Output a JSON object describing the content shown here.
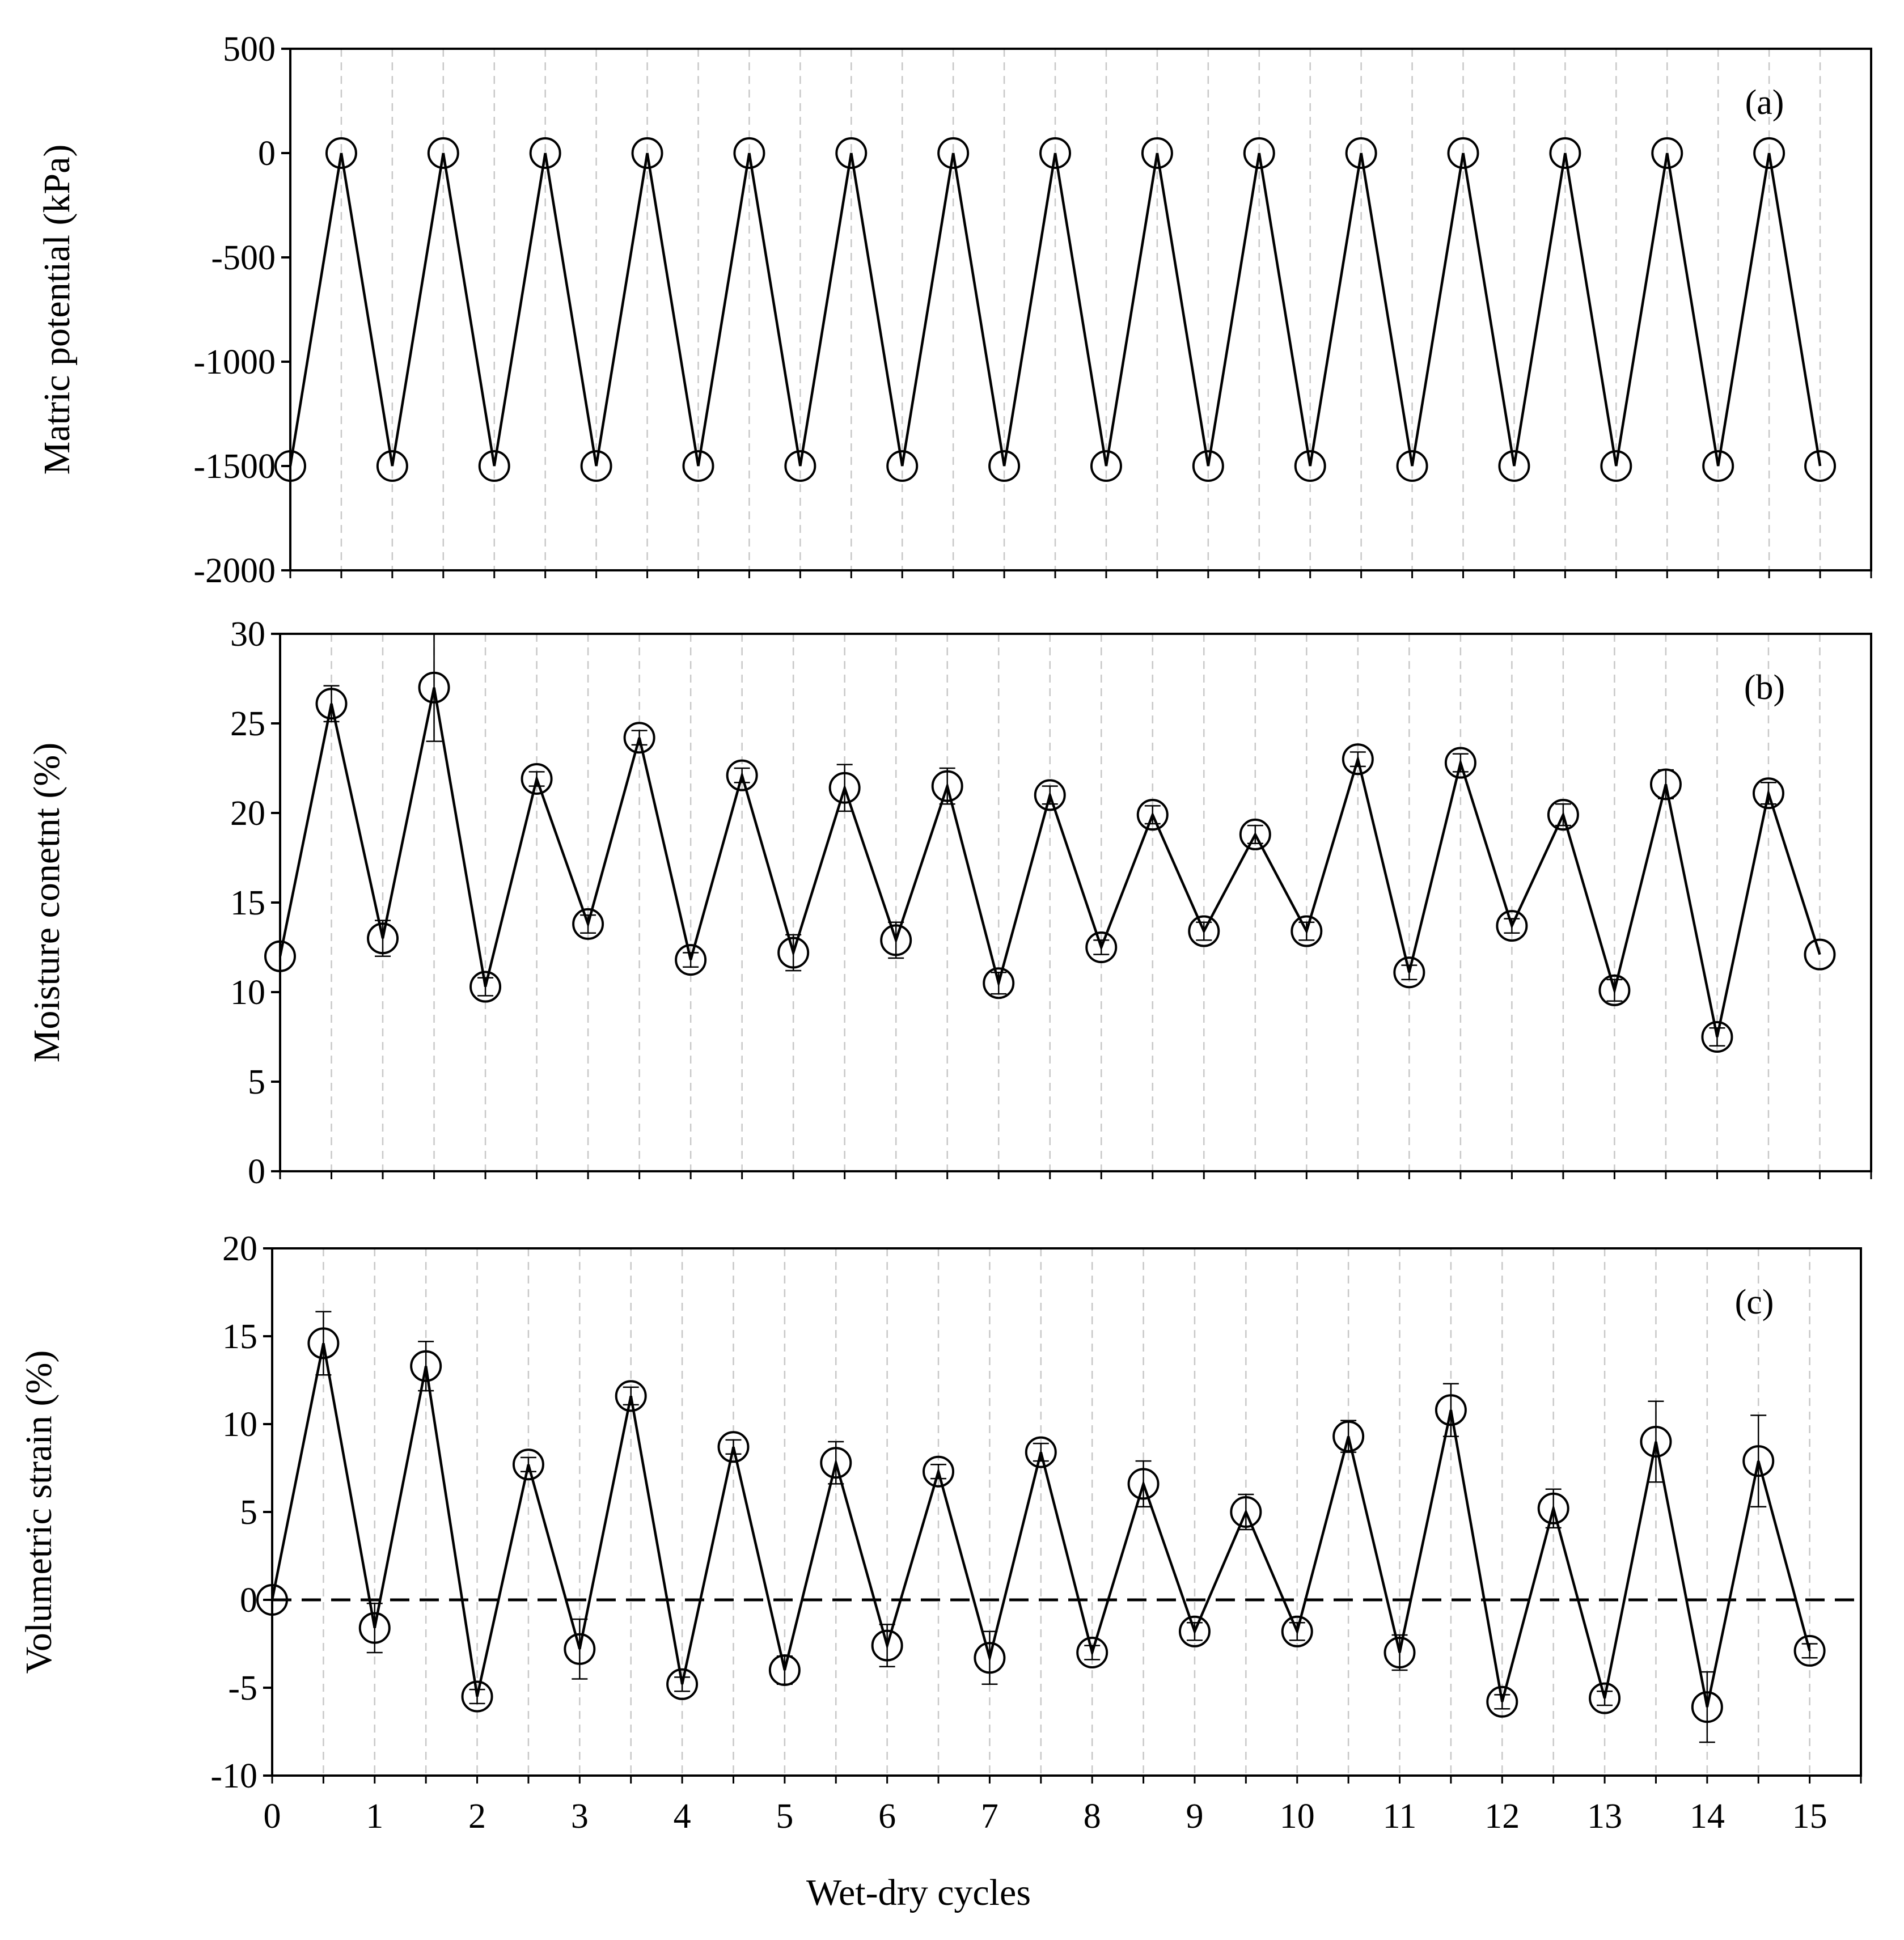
{
  "chart_data": [
    {
      "type": "line",
      "panel_label": "(a)",
      "ylabel": "Matric potential (kPa)",
      "ylim": [
        -2000,
        500
      ],
      "yticks": [
        500,
        0,
        -500,
        -1000,
        -1500,
        -2000
      ],
      "x": [
        0,
        0.5,
        1,
        1.5,
        2,
        2.5,
        3,
        3.5,
        4,
        4.5,
        5,
        5.5,
        6,
        6.5,
        7,
        7.5,
        8,
        8.5,
        9,
        9.5,
        10,
        10.5,
        11,
        11.5,
        12,
        12.5,
        13,
        13.5,
        14,
        14.5,
        15
      ],
      "series": [
        {
          "values": [
            -1500,
            0,
            -1500,
            0,
            -1500,
            0,
            -1500,
            0,
            -1500,
            0,
            -1500,
            0,
            -1500,
            0,
            -1500,
            0,
            -1500,
            0,
            -1500,
            0,
            -1500,
            0,
            -1500,
            0,
            -1500,
            0,
            -1500,
            0,
            -1500,
            0,
            -1500
          ],
          "errors": []
        }
      ]
    },
    {
      "type": "line",
      "panel_label": "(b)",
      "ylabel": "Moisture conetnt (%)",
      "ylim": [
        0,
        30
      ],
      "yticks": [
        0,
        5,
        10,
        15,
        20,
        25,
        30
      ],
      "x": [
        0,
        0.5,
        1,
        1.5,
        2,
        2.5,
        3,
        3.5,
        4,
        4.5,
        5,
        5.5,
        6,
        6.5,
        7,
        7.5,
        8,
        8.5,
        9,
        9.5,
        10,
        10.5,
        11,
        11.5,
        12,
        12.5,
        13,
        13.5,
        14,
        14.5,
        15
      ],
      "series": [
        {
          "values": [
            12.0,
            26.1,
            13.0,
            27.0,
            10.3,
            21.9,
            13.8,
            24.2,
            11.8,
            22.1,
            12.2,
            21.4,
            12.9,
            21.5,
            10.5,
            21.0,
            12.5,
            19.9,
            13.4,
            18.8,
            13.4,
            23.0,
            11.1,
            22.8,
            13.7,
            19.9,
            10.1,
            21.6,
            7.5,
            21.1,
            12.1
          ],
          "errors": [
            0,
            1.0,
            1.0,
            3.0,
            0.5,
            0.4,
            0.5,
            0.4,
            0.4,
            0.4,
            1.0,
            1.3,
            1.0,
            1.0,
            0.6,
            0.5,
            0.4,
            0.5,
            0.5,
            0.5,
            0.5,
            0.4,
            0.4,
            0.5,
            0.4,
            0.6,
            0.6,
            0.8,
            0.5,
            0.6,
            0
          ]
        }
      ]
    },
    {
      "type": "line",
      "panel_label": "(c)",
      "ylabel": "Volumetric strain (%)",
      "xlabel": "Wet-dry cycles",
      "ylim": [
        -10,
        20
      ],
      "yticks": [
        -10,
        -5,
        0,
        5,
        10,
        15,
        20
      ],
      "reference_line": 0,
      "x": [
        0,
        0.5,
        1,
        1.5,
        2,
        2.5,
        3,
        3.5,
        4,
        4.5,
        5,
        5.5,
        6,
        6.5,
        7,
        7.5,
        8,
        8.5,
        9,
        9.5,
        10,
        10.5,
        11,
        11.5,
        12,
        12.5,
        13,
        13.5,
        14,
        14.5,
        15
      ],
      "xticks": [
        0,
        1,
        2,
        3,
        4,
        5,
        6,
        7,
        8,
        9,
        10,
        11,
        12,
        13,
        14,
        15
      ],
      "series": [
        {
          "values": [
            0,
            14.6,
            -1.6,
            13.3,
            -5.5,
            7.7,
            -2.8,
            11.6,
            -4.8,
            8.7,
            -4.0,
            7.8,
            -2.6,
            7.3,
            -3.3,
            8.4,
            -3.0,
            6.6,
            -1.8,
            5.0,
            -1.8,
            9.3,
            -3.0,
            10.8,
            -5.8,
            5.2,
            -5.6,
            9.0,
            -6.1,
            7.9,
            -2.9
          ],
          "errors": [
            0,
            1.8,
            1.4,
            1.4,
            0.4,
            0.4,
            1.7,
            0.5,
            0.4,
            0.4,
            0.8,
            1.2,
            1.2,
            0.4,
            1.5,
            0.5,
            0.4,
            1.3,
            0.5,
            1.0,
            0.5,
            0.9,
            1.0,
            1.5,
            0.4,
            1.1,
            0.4,
            2.3,
            2.0,
            2.6,
            0.4
          ]
        }
      ]
    }
  ]
}
